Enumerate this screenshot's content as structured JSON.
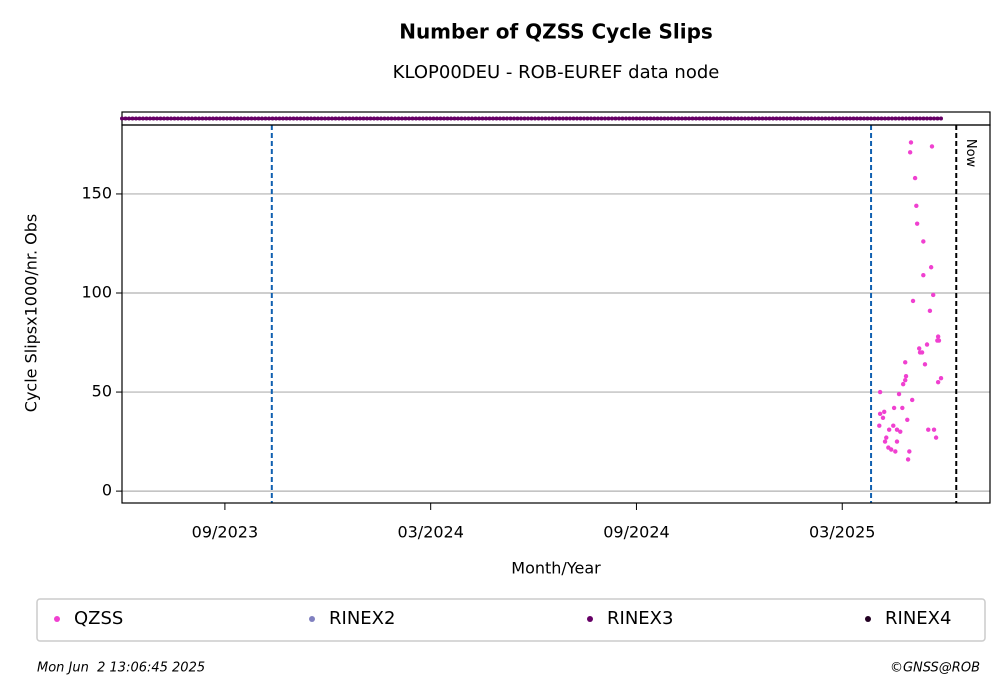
{
  "chart_data": {
    "type": "scatter",
    "title": "Number of QZSS Cycle Slips",
    "subtitle": "KLOP00DEU - ROB-EUREF data node",
    "x_label": "Month/Year",
    "y_label": "Cycle Slipsx1000/nr. Obs",
    "xlim": [
      2023.417,
      2025.526
    ],
    "ylim": [
      -6,
      184.8
    ],
    "xticks": [
      {
        "value": 2023.667,
        "label": "09/2023"
      },
      {
        "value": 2024.167,
        "label": "03/2024"
      },
      {
        "value": 2024.667,
        "label": "09/2024"
      },
      {
        "value": 2025.167,
        "label": "03/2025"
      }
    ],
    "yticks": [
      0,
      50,
      100,
      150
    ],
    "grid": true,
    "vlines": [
      2023.781,
      2025.237
    ],
    "vline_color": "#1060b0",
    "now": {
      "x": 2025.444,
      "label": "Now"
    },
    "series": [
      {
        "name": "QZSS",
        "color": "#f040d0",
        "x": [
          2025.257,
          2025.259,
          2025.259,
          2025.269,
          2025.266,
          2025.271,
          2025.274,
          2025.279,
          2025.281,
          2025.286,
          2025.291,
          2025.293,
          2025.296,
          2025.3,
          2025.3,
          2025.305,
          2025.308,
          2025.313,
          2025.315,
          2025.32,
          2025.32,
          2025.322,
          2025.325,
          2025.327,
          2025.33,
          2025.332,
          2025.334,
          2025.337,
          2025.339,
          2025.344,
          2025.347,
          2025.349,
          2025.354,
          2025.356,
          2025.361,
          2025.364,
          2025.364,
          2025.368,
          2025.373,
          2025.376,
          2025.38,
          2025.383,
          2025.385,
          2025.388,
          2025.39,
          2025.395,
          2025.398,
          2025.4,
          2025.4,
          2025.402,
          2025.407
        ],
        "values": [
          33,
          50,
          39,
          40,
          37,
          25,
          27,
          22,
          31,
          21,
          33,
          42,
          20,
          25,
          31,
          49,
          30,
          42,
          54,
          56,
          65,
          58,
          36,
          16,
          20,
          171,
          176,
          46,
          96,
          158,
          144,
          135,
          72,
          70,
          70,
          126,
          109,
          64,
          74,
          31,
          91,
          113,
          174,
          99,
          31,
          27,
          76,
          55,
          78,
          76,
          57
        ]
      },
      {
        "name": "RINEX2",
        "color": "#8080c0"
      },
      {
        "name": "RINEX3",
        "color": "#660066",
        "x": [
          2023.417,
          2025.407
        ]
      },
      {
        "name": "RINEX4",
        "color": "#220022"
      }
    ],
    "footer_left": "Mon Jun  2 13:06:45 2025",
    "footer_right": "©GNSS@ROB"
  }
}
